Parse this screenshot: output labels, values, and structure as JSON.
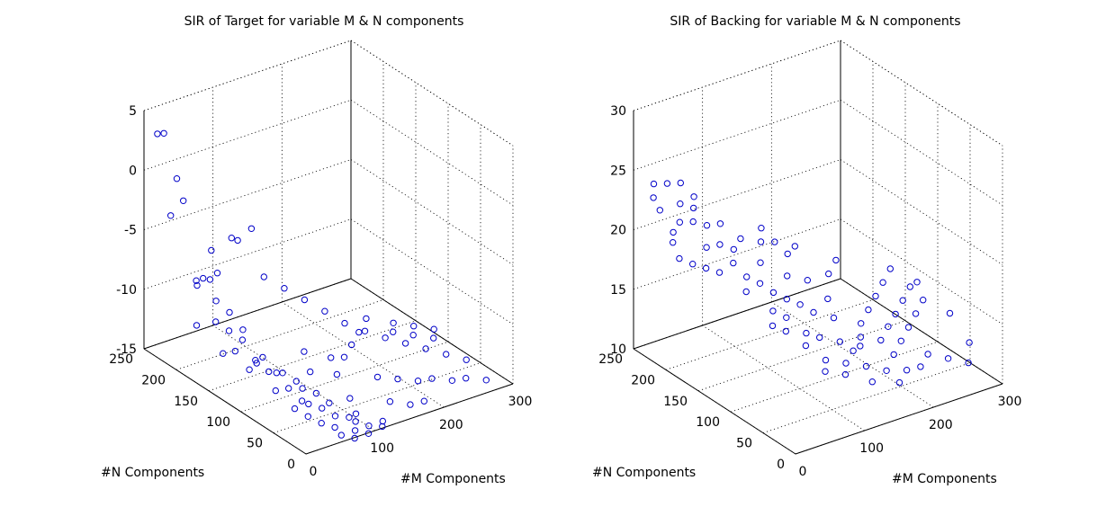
{
  "chart_data": [
    {
      "type": "scatter3d",
      "title": "SIR of Target for variable M & N components",
      "xlabel": "#M Components",
      "ylabel": "#N Components",
      "zlabel": "",
      "xlim": [
        0,
        300
      ],
      "ylim": [
        0,
        250
      ],
      "zlim": [
        -15,
        5
      ],
      "xticks": [
        0,
        100,
        200,
        300
      ],
      "yticks": [
        0,
        50,
        100,
        150,
        200,
        250
      ],
      "zticks": [
        -15,
        -10,
        -5,
        0,
        5
      ],
      "grid": true,
      "points": [
        [
          10,
          230,
          3.6
        ],
        [
          10,
          240,
          3.2
        ],
        [
          10,
          210,
          0.5
        ],
        [
          10,
          200,
          -1.0
        ],
        [
          20,
          230,
          -3.5
        ],
        [
          10,
          180,
          -7
        ],
        [
          20,
          180,
          -7
        ],
        [
          30,
          180,
          -7.3
        ],
        [
          20,
          160,
          -8.2
        ],
        [
          30,
          150,
          -9
        ],
        [
          10,
          150,
          -9.4
        ],
        [
          20,
          140,
          -10
        ],
        [
          30,
          130,
          -10.6
        ],
        [
          40,
          140,
          -10.3
        ],
        [
          10,
          120,
          -10.8
        ],
        [
          30,
          110,
          -11.6
        ],
        [
          50,
          120,
          -12.1
        ],
        [
          40,
          100,
          -12.4
        ],
        [
          60,
          100,
          -12.9
        ],
        [
          50,
          80,
          -13.3
        ],
        [
          70,
          80,
          -13.7
        ],
        [
          60,
          60,
          -14.1
        ],
        [
          70,
          50,
          -14.3
        ],
        [
          50,
          50,
          -14.6
        ],
        [
          80,
          40,
          -14.8
        ],
        [
          90,
          60,
          -14.6
        ],
        [
          60,
          40,
          -15
        ],
        [
          70,
          30,
          -15.2
        ],
        [
          100,
          40,
          -15.3
        ],
        [
          90,
          20,
          -15.5
        ],
        [
          100,
          10,
          -15.6
        ],
        [
          110,
          20,
          -15.5
        ],
        [
          120,
          10,
          -15.4
        ],
        [
          130,
          20,
          -15.5
        ],
        [
          80,
          10,
          -15.6
        ],
        [
          70,
          20,
          -15.5
        ],
        [
          100,
          30,
          -15.3
        ],
        [
          110,
          40,
          -15.2
        ],
        [
          120,
          60,
          -14.8
        ],
        [
          90,
          80,
          -14.5
        ],
        [
          60,
          70,
          -14.2
        ],
        [
          40,
          60,
          -14.1
        ],
        [
          50,
          100,
          -14.2
        ],
        [
          80,
          100,
          -14.0
        ],
        [
          70,
          120,
          -13.8
        ],
        [
          60,
          140,
          -13.5
        ],
        [
          40,
          130,
          -13.3
        ],
        [
          30,
          160,
          -12.8
        ],
        [
          20,
          190,
          -11.3
        ],
        [
          30,
          200,
          -8.5
        ],
        [
          50,
          190,
          -7.5
        ],
        [
          60,
          210,
          -6.5
        ],
        [
          80,
          200,
          -5.5
        ],
        [
          70,
          180,
          -4.8
        ],
        [
          90,
          180,
          -4.2
        ],
        [
          80,
          150,
          -7
        ],
        [
          100,
          140,
          -8
        ],
        [
          120,
          130,
          -9
        ],
        [
          140,
          120,
          -10
        ],
        [
          150,
          100,
          -10.5
        ],
        [
          170,
          90,
          -11.2
        ],
        [
          190,
          80,
          -11.8
        ],
        [
          210,
          70,
          -12.3
        ],
        [
          230,
          60,
          -12.8
        ],
        [
          250,
          50,
          -13.3
        ],
        [
          270,
          40,
          -13.8
        ],
        [
          160,
          60,
          -13.8
        ],
        [
          180,
          50,
          -14.0
        ],
        [
          200,
          40,
          -14.2
        ],
        [
          220,
          40,
          -14.4
        ],
        [
          240,
          30,
          -14.6
        ],
        [
          260,
          30,
          -14.8
        ],
        [
          280,
          20,
          -15.0
        ],
        [
          140,
          90,
          -12.8
        ],
        [
          160,
          100,
          -12.5
        ],
        [
          180,
          110,
          -12.2
        ],
        [
          200,
          120,
          -11.8
        ],
        [
          220,
          100,
          -12.6
        ],
        [
          240,
          90,
          -12.9
        ],
        [
          260,
          80,
          -13.2
        ],
        [
          150,
          30,
          -14.6
        ],
        [
          170,
          20,
          -14.9
        ],
        [
          190,
          20,
          -15.0
        ],
        [
          120,
          80,
          -13.5
        ],
        [
          130,
          100,
          -13.0
        ],
        [
          110,
          120,
          -12.8
        ],
        [
          100,
          100,
          -13.6
        ],
        [
          230,
          110,
          -12.4
        ],
        [
          250,
          100,
          -12.7
        ],
        [
          270,
          90,
          -13.0
        ]
      ]
    },
    {
      "type": "scatter3d",
      "title": "SIR of Backing for variable M & N components",
      "xlabel": "#M Components",
      "ylabel": "#N Components",
      "zlabel": "",
      "xlim": [
        0,
        300
      ],
      "ylim": [
        0,
        250
      ],
      "zlim": [
        10,
        30
      ],
      "xticks": [
        0,
        100,
        200,
        300
      ],
      "yticks": [
        0,
        50,
        100,
        150,
        200,
        250
      ],
      "zticks": [
        10,
        15,
        20,
        25,
        30
      ],
      "grid": true,
      "points": [
        [
          10,
          230,
          23.2
        ],
        [
          20,
          240,
          23.8
        ],
        [
          10,
          220,
          22.5
        ],
        [
          30,
          230,
          24.0
        ],
        [
          30,
          210,
          23.0
        ],
        [
          40,
          220,
          24.2
        ],
        [
          20,
          200,
          22.0
        ],
        [
          40,
          200,
          22.8
        ],
        [
          50,
          210,
          23.2
        ],
        [
          30,
          190,
          22.2
        ],
        [
          10,
          200,
          20.5
        ],
        [
          20,
          210,
          20.8
        ],
        [
          10,
          190,
          19.5
        ],
        [
          20,
          180,
          19.2
        ],
        [
          30,
          170,
          19.0
        ],
        [
          40,
          180,
          20.2
        ],
        [
          50,
          170,
          20.6
        ],
        [
          60,
          180,
          21.8
        ],
        [
          50,
          190,
          21.5
        ],
        [
          40,
          160,
          18.8
        ],
        [
          60,
          160,
          19.2
        ],
        [
          70,
          170,
          19.8
        ],
        [
          80,
          170,
          20.5
        ],
        [
          70,
          150,
          18.2
        ],
        [
          80,
          140,
          17.8
        ],
        [
          90,
          150,
          19.0
        ],
        [
          100,
          160,
          20.2
        ],
        [
          60,
          140,
          17.5
        ],
        [
          90,
          130,
          17.2
        ],
        [
          100,
          120,
          16.8
        ],
        [
          110,
          130,
          18.2
        ],
        [
          120,
          140,
          19.5
        ],
        [
          80,
          120,
          16.2
        ],
        [
          90,
          110,
          15.8
        ],
        [
          110,
          110,
          16.5
        ],
        [
          130,
          120,
          17.8
        ],
        [
          70,
          110,
          15.5
        ],
        [
          80,
          100,
          15.2
        ],
        [
          100,
          90,
          15.0
        ],
        [
          120,
          100,
          16.0
        ],
        [
          140,
          90,
          15.5
        ],
        [
          90,
          80,
          14.5
        ],
        [
          110,
          80,
          14.8
        ],
        [
          130,
          70,
          14.4
        ],
        [
          150,
          60,
          14.0
        ],
        [
          100,
          60,
          13.8
        ],
        [
          120,
          50,
          13.5
        ],
        [
          140,
          40,
          13.2
        ],
        [
          160,
          30,
          12.8
        ],
        [
          180,
          40,
          13.4
        ],
        [
          200,
          50,
          13.8
        ],
        [
          220,
          60,
          14.2
        ],
        [
          240,
          70,
          14.6
        ],
        [
          260,
          80,
          15.0
        ],
        [
          280,
          60,
          14.2
        ],
        [
          170,
          80,
          14.8
        ],
        [
          190,
          90,
          15.2
        ],
        [
          210,
          100,
          15.6
        ],
        [
          230,
          110,
          16.0
        ],
        [
          250,
          120,
          16.4
        ],
        [
          270,
          100,
          15.6
        ],
        [
          150,
          110,
          16.2
        ],
        [
          170,
          130,
          17.2
        ],
        [
          190,
          140,
          17.6
        ],
        [
          160,
          10,
          12.5
        ],
        [
          180,
          20,
          12.8
        ],
        [
          200,
          20,
          12.7
        ],
        [
          220,
          30,
          13.0
        ],
        [
          240,
          20,
          12.6
        ],
        [
          260,
          10,
          12.2
        ],
        [
          280,
          30,
          12.8
        ],
        [
          130,
          20,
          12.8
        ],
        [
          110,
          40,
          13.1
        ],
        [
          90,
          50,
          13.4
        ],
        [
          140,
          60,
          13.8
        ],
        [
          160,
          70,
          14.2
        ],
        [
          180,
          60,
          13.9
        ],
        [
          200,
          70,
          14.3
        ],
        [
          220,
          80,
          14.6
        ],
        [
          240,
          90,
          15.0
        ],
        [
          260,
          100,
          15.4
        ],
        [
          120,
          160,
          19.8
        ],
        [
          140,
          150,
          19.4
        ],
        [
          110,
          170,
          20.8
        ]
      ]
    }
  ]
}
